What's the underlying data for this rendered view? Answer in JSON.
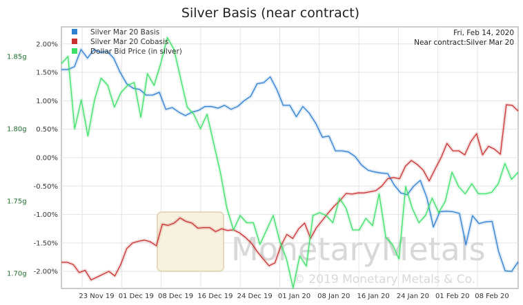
{
  "chart_data": {
    "type": "line",
    "title": "Silver Basis (near contract)",
    "info": {
      "date": "Fri, Feb 14, 2020",
      "near_contract": "Near contract:Silver Mar 20"
    },
    "x_tick_labels": [
      "23 Nov 19",
      "01 Dec 19",
      "08 Dec 19",
      "16 Dec 19",
      "24 Dec 19",
      "01 Jan 20",
      "08 Jan 20",
      "16 Jan 20",
      "24 Jan 20",
      "01 Feb 20",
      "08 Feb 20"
    ],
    "y_left": {
      "ylim": [
        -2.3,
        2.3
      ],
      "ticks": [
        2.0,
        1.5,
        1.0,
        0.5,
        0.0,
        -0.5,
        -1.0,
        -1.5,
        -2.0
      ],
      "tick_labels": [
        "2.00%",
        "1.50%",
        "1.00%",
        "0.50%",
        "0.00%",
        "-0.50%",
        "-1.00%",
        "-1.50%",
        "-2.00%"
      ]
    },
    "y_right": {
      "ylim": [
        1.6895,
        1.8705
      ],
      "ticks": [
        1.85,
        1.8,
        1.75,
        1.7
      ],
      "tick_labels": [
        "1.85g",
        "1.80g",
        "1.75g",
        "1.70g"
      ]
    },
    "watermark": {
      "brand": "MonetaryMetals",
      "copyright": "© 2019 Monetary Metals & Co."
    },
    "series": [
      {
        "name": "Silver Mar 20 Basis",
        "axis": "left",
        "color": "#2f7fd0",
        "values": [
          1.55,
          1.55,
          1.6,
          1.9,
          1.75,
          1.9,
          1.85,
          1.87,
          1.75,
          1.5,
          1.3,
          1.22,
          1.2,
          1.1,
          1.1,
          1.15,
          0.85,
          0.88,
          0.8,
          0.74,
          0.8,
          0.83,
          0.9,
          0.9,
          0.87,
          0.92,
          0.85,
          0.9,
          1.0,
          1.08,
          1.3,
          1.32,
          1.42,
          1.2,
          0.92,
          0.92,
          0.72,
          0.9,
          0.78,
          0.6,
          0.36,
          0.38,
          0.12,
          0.12,
          0.1,
          0.02,
          -0.13,
          -0.22,
          -0.25,
          -0.27,
          -0.28,
          -0.48,
          -0.62,
          -0.65,
          -0.5,
          -0.4,
          -0.7,
          -1.22,
          -0.95,
          -0.94,
          -0.95,
          -0.98,
          -1.53,
          -1.02,
          -1.16,
          -1.13,
          -1.12,
          -1.65,
          -1.99,
          -2.0,
          -1.83
        ]
      },
      {
        "name": "Silver Mar 20 Cobasis",
        "axis": "left",
        "color": "#c83232",
        "values": [
          -1.84,
          -1.84,
          -1.88,
          -2.02,
          -1.98,
          -2.15,
          -2.1,
          -2.05,
          -2.0,
          -2.08,
          -1.88,
          -1.6,
          -1.5,
          -1.47,
          -1.45,
          -1.48,
          -1.55,
          -1.17,
          -1.19,
          -1.15,
          -1.06,
          -1.12,
          -1.15,
          -1.24,
          -1.23,
          -1.23,
          -1.3,
          -1.25,
          -1.28,
          -1.27,
          -1.32,
          -1.4,
          -1.5,
          -1.65,
          -1.78,
          -1.9,
          -1.85,
          -1.55,
          -1.35,
          -1.42,
          -1.25,
          -1.15,
          -1.42,
          -1.23,
          -1.1,
          -0.97,
          -0.85,
          -0.75,
          -0.63,
          -0.64,
          -0.62,
          -0.62,
          -0.6,
          -0.58,
          -0.5,
          -0.37,
          -0.35,
          -0.37,
          -0.15,
          -0.05,
          -0.12,
          -0.22,
          -0.41,
          -0.2,
          0.0,
          0.25,
          0.12,
          0.12,
          0.05,
          0.28,
          0.42,
          0.05,
          0.2,
          0.15,
          0.06,
          0.93,
          0.92,
          0.82
        ]
      },
      {
        "name": "Dollar Bid Price (in silver)",
        "axis": "right",
        "color": "#3fe06a",
        "values": [
          1.845,
          1.85,
          1.8,
          1.82,
          1.795,
          1.82,
          1.835,
          1.83,
          1.815,
          1.825,
          1.83,
          1.832,
          1.808,
          1.838,
          1.83,
          1.845,
          1.863,
          1.855,
          1.835,
          1.815,
          1.81,
          1.8,
          1.81,
          1.79,
          1.77,
          1.745,
          1.73,
          1.74,
          1.735,
          1.735,
          1.72,
          1.73,
          1.74,
          1.722,
          1.71,
          1.69,
          1.712,
          1.705,
          1.74,
          1.742,
          1.74,
          1.735,
          1.752,
          1.745,
          1.73,
          1.73,
          1.738,
          1.733,
          1.755,
          1.725,
          1.72,
          1.71,
          1.76,
          1.745,
          1.735,
          1.74,
          1.752,
          1.742,
          1.75,
          1.77,
          1.76,
          1.755,
          1.762,
          1.755,
          1.755,
          1.756,
          1.762,
          1.776,
          1.765,
          1.77
        ]
      }
    ]
  }
}
